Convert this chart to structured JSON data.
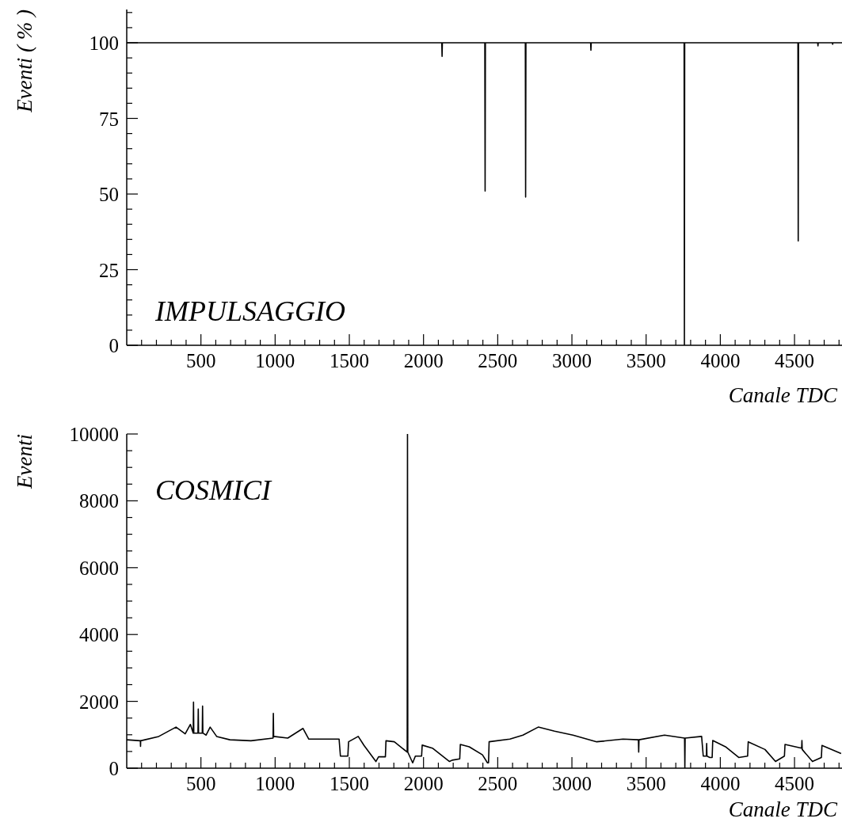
{
  "chart_data": [
    {
      "type": "line",
      "ylabel": "Eventi ( % )",
      "xlabel": "Canale TDC",
      "annotations": [
        "IMPULSAGGIO"
      ],
      "xlim": [
        0,
        4820
      ],
      "ylim": [
        0,
        111
      ],
      "xticks": [
        500,
        1000,
        1500,
        2000,
        2500,
        3000,
        3500,
        4000,
        4500,
        {
          "value": 100,
          "label": null
        },
        {
          "value": 200,
          "label": null
        },
        {
          "value": 300,
          "label": null
        },
        {
          "value": 400,
          "label": null
        },
        {
          "value": 600,
          "label": null
        },
        {
          "value": 700,
          "label": null
        },
        {
          "value": 800,
          "label": null
        },
        {
          "value": 900,
          "label": null
        },
        {
          "value": 1100,
          "label": null
        },
        {
          "value": 1200,
          "label": null
        },
        {
          "value": 1300,
          "label": null
        },
        {
          "value": 1400,
          "label": null
        },
        {
          "value": 1600,
          "label": null
        },
        {
          "value": 1700,
          "label": null
        },
        {
          "value": 1800,
          "label": null
        },
        {
          "value": 1900,
          "label": null
        },
        {
          "value": 2100,
          "label": null
        },
        {
          "value": 2200,
          "label": null
        },
        {
          "value": 2300,
          "label": null
        },
        {
          "value": 2400,
          "label": null
        },
        {
          "value": 2600,
          "label": null
        },
        {
          "value": 2700,
          "label": null
        },
        {
          "value": 2800,
          "label": null
        },
        {
          "value": 2900,
          "label": null
        },
        {
          "value": 3100,
          "label": null
        },
        {
          "value": 3200,
          "label": null
        },
        {
          "value": 3300,
          "label": null
        },
        {
          "value": 3400,
          "label": null
        },
        {
          "value": 3600,
          "label": null
        },
        {
          "value": 3700,
          "label": null
        },
        {
          "value": 3800,
          "label": null
        },
        {
          "value": 3900,
          "label": null
        },
        {
          "value": 4100,
          "label": null
        },
        {
          "value": 4200,
          "label": null
        },
        {
          "value": 4300,
          "label": null
        },
        {
          "value": 4400,
          "label": null
        },
        {
          "value": 4600,
          "label": null
        },
        {
          "value": 4700,
          "label": null
        },
        {
          "value": 4800,
          "label": null
        }
      ],
      "yticks": [
        0,
        25,
        50,
        75,
        100,
        {
          "value": 5,
          "label": null
        },
        {
          "value": 10,
          "label": null
        },
        {
          "value": 15,
          "label": null
        },
        {
          "value": 20,
          "label": null
        },
        {
          "value": 30,
          "label": null
        },
        {
          "value": 35,
          "label": null
        },
        {
          "value": 40,
          "label": null
        },
        {
          "value": 45,
          "label": null
        },
        {
          "value": 55,
          "label": null
        },
        {
          "value": 60,
          "label": null
        },
        {
          "value": 65,
          "label": null
        },
        {
          "value": 70,
          "label": null
        },
        {
          "value": 80,
          "label": null
        },
        {
          "value": 85,
          "label": null
        },
        {
          "value": 90,
          "label": null
        },
        {
          "value": 95,
          "label": null
        },
        {
          "value": 105,
          "label": null
        },
        {
          "value": 110,
          "label": null
        }
      ],
      "series": [
        {
          "color": "#000000",
          "x": [
            0,
            2123,
            2125,
            2127,
            2413,
            2415,
            2417,
            2686,
            2688,
            2690,
            3126,
            3128,
            3130,
            3756,
            3758,
            3760,
            4523,
            4525,
            4527,
            4656,
            4658,
            4660,
            4755,
            4757,
            4759,
            4820
          ],
          "values": [
            100,
            100,
            95.5,
            100,
            100,
            51,
            100,
            100,
            49,
            100,
            100,
            97.5,
            100,
            100,
            0,
            100,
            100,
            34.5,
            100,
            100,
            99,
            100,
            100,
            99.5,
            100,
            100
          ]
        }
      ]
    },
    {
      "type": "line",
      "ylabel": "Eventi",
      "xlabel": "Canale TDC",
      "annotations": [
        "COSMICI"
      ],
      "xlim": [
        0,
        4820
      ],
      "ylim": [
        0,
        10000
      ],
      "xticks": [
        500,
        1000,
        1500,
        2000,
        2500,
        3000,
        3500,
        4000,
        4500,
        {
          "value": 100,
          "label": null
        },
        {
          "value": 200,
          "label": null
        },
        {
          "value": 300,
          "label": null
        },
        {
          "value": 400,
          "label": null
        },
        {
          "value": 600,
          "label": null
        },
        {
          "value": 700,
          "label": null
        },
        {
          "value": 800,
          "label": null
        },
        {
          "value": 900,
          "label": null
        },
        {
          "value": 1100,
          "label": null
        },
        {
          "value": 1200,
          "label": null
        },
        {
          "value": 1300,
          "label": null
        },
        {
          "value": 1400,
          "label": null
        },
        {
          "value": 1600,
          "label": null
        },
        {
          "value": 1700,
          "label": null
        },
        {
          "value": 1800,
          "label": null
        },
        {
          "value": 1900,
          "label": null
        },
        {
          "value": 2100,
          "label": null
        },
        {
          "value": 2200,
          "label": null
        },
        {
          "value": 2300,
          "label": null
        },
        {
          "value": 2400,
          "label": null
        },
        {
          "value": 2600,
          "label": null
        },
        {
          "value": 2700,
          "label": null
        },
        {
          "value": 2800,
          "label": null
        },
        {
          "value": 2900,
          "label": null
        },
        {
          "value": 3100,
          "label": null
        },
        {
          "value": 3200,
          "label": null
        },
        {
          "value": 3300,
          "label": null
        },
        {
          "value": 3400,
          "label": null
        },
        {
          "value": 3600,
          "label": null
        },
        {
          "value": 3700,
          "label": null
        },
        {
          "value": 3800,
          "label": null
        },
        {
          "value": 3900,
          "label": null
        },
        {
          "value": 4100,
          "label": null
        },
        {
          "value": 4200,
          "label": null
        },
        {
          "value": 4300,
          "label": null
        },
        {
          "value": 4400,
          "label": null
        },
        {
          "value": 4600,
          "label": null
        },
        {
          "value": 4700,
          "label": null
        },
        {
          "value": 4800,
          "label": null
        }
      ],
      "yticks": [
        0,
        2000,
        4000,
        6000,
        8000,
        10000,
        {
          "value": 500,
          "label": null
        },
        {
          "value": 1000,
          "label": null
        },
        {
          "value": 1500,
          "label": null
        },
        {
          "value": 2500,
          "label": null
        },
        {
          "value": 3000,
          "label": null
        },
        {
          "value": 3500,
          "label": null
        },
        {
          "value": 4500,
          "label": null
        },
        {
          "value": 5000,
          "label": null
        },
        {
          "value": 5500,
          "label": null
        },
        {
          "value": 6500,
          "label": null
        },
        {
          "value": 7000,
          "label": null
        },
        {
          "value": 7500,
          "label": null
        },
        {
          "value": 8500,
          "label": null
        },
        {
          "value": 9000,
          "label": null
        },
        {
          "value": 9500,
          "label": null
        }
      ],
      "series": [
        {
          "color": "#000000",
          "x": [
            0,
            92,
            93,
            94,
            216,
            332,
            394,
            429,
            448,
            450,
            452,
            480,
            482,
            484,
            509,
            511,
            513,
            535,
            562,
            606,
            695,
            837,
            986,
            988,
            990,
            1085,
            1188,
            1227,
            1431,
            1440,
            1490,
            1495,
            1560,
            1599,
            1679,
            1697,
            1743,
            1747,
            1803,
            1890,
            1892,
            1894,
            1927,
            1945,
            1987,
            1991,
            2060,
            2175,
            2193,
            2244,
            2248,
            2308,
            2397,
            2431,
            2438,
            2442,
            2582,
            2670,
            2773,
            2883,
            3007,
            3167,
            3344,
            3448,
            3450,
            3452,
            3624,
            3759,
            3761,
            3763,
            3874,
            3885,
            3906,
            3908,
            3910,
            3929,
            3945,
            3949,
            4035,
            4124,
            4184,
            4188,
            4301,
            4372,
            4432,
            4436,
            4548,
            4550,
            4552,
            4621,
            4681,
            4685,
            4814
          ],
          "values": [
            850,
            820,
            650,
            820,
            950,
            1230,
            1030,
            1310,
            1050,
            1980,
            1050,
            1050,
            1770,
            1050,
            1050,
            1860,
            1050,
            990,
            1230,
            950,
            850,
            820,
            900,
            1640,
            950,
            900,
            1190,
            870,
            870,
            360,
            360,
            790,
            950,
            680,
            200,
            340,
            340,
            820,
            790,
            480,
            10000,
            480,
            160,
            360,
            360,
            690,
            600,
            200,
            240,
            280,
            710,
            640,
            400,
            160,
            160,
            790,
            870,
            990,
            1230,
            1110,
            990,
            790,
            870,
            850,
            480,
            850,
            990,
            900,
            0,
            900,
            950,
            360,
            360,
            740,
            360,
            320,
            320,
            830,
            640,
            320,
            360,
            790,
            560,
            200,
            360,
            710,
            600,
            830,
            560,
            200,
            320,
            680,
            440
          ]
        }
      ]
    }
  ]
}
